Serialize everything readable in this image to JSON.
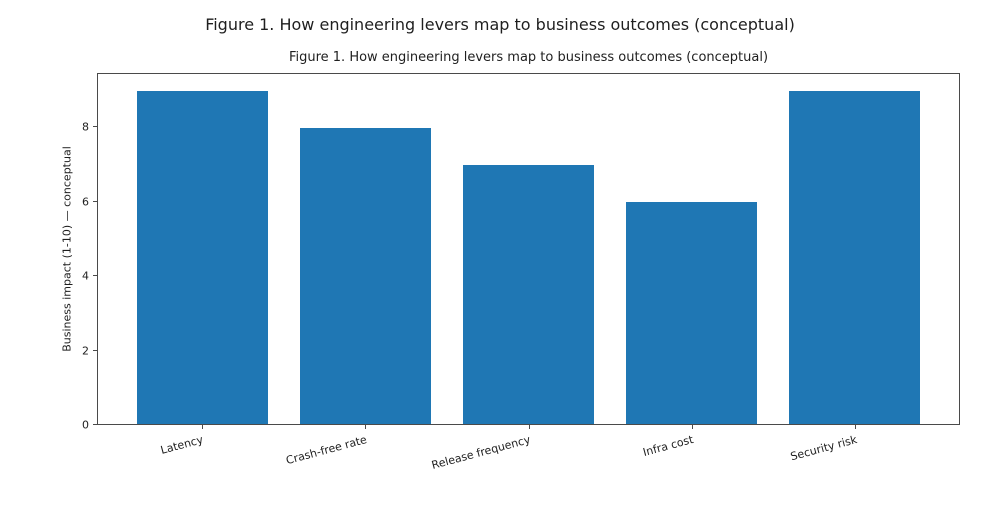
{
  "figure": {
    "suptitle": "Figure 1. How engineering levers map to business outcomes (conceptual)",
    "background": "#ffffff"
  },
  "chart_data": {
    "type": "bar",
    "title": "Figure 1. How engineering levers map to business outcomes (conceptual)",
    "categories": [
      "Latency",
      "Crash-free rate",
      "Release frequency",
      "Infra cost",
      "Security risk"
    ],
    "values": [
      9,
      8,
      7,
      6,
      9
    ],
    "xlabel": "",
    "ylabel": "Business impact (1-10) — conceptual",
    "ylim": [
      0,
      9.45
    ],
    "yticks": [
      0,
      2,
      4,
      6,
      8
    ],
    "bar_color": "#1f77b4",
    "bar_width_fraction": 0.8,
    "xtick_rotation_deg": 15,
    "grid": false,
    "legend_position": "none",
    "spine_color": "#4a4a4a",
    "text_color": "#1f1f1f"
  }
}
